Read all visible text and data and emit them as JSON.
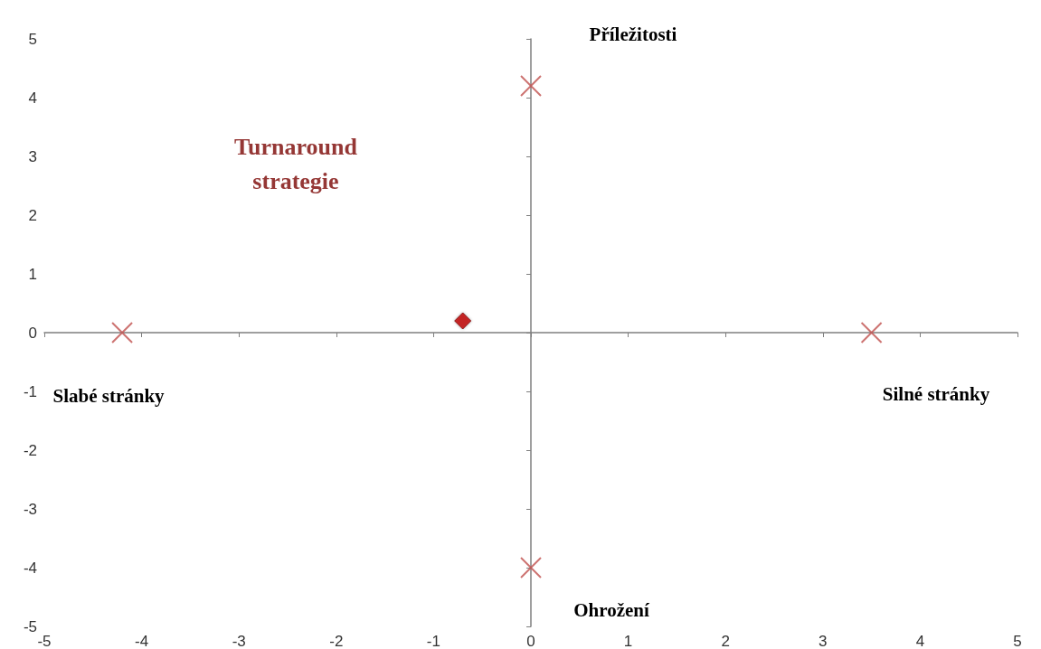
{
  "chart_data": {
    "type": "scatter",
    "title": "Turnaround\nstrategie",
    "series": [
      {
        "color": "#c0504d",
        "marker": "cross",
        "x": [
          -4.2,
          3.5,
          0,
          0
        ],
        "values": [
          0,
          0,
          4.2,
          -4
        ]
      },
      {
        "color": "#c00000",
        "marker": "diamond",
        "x": [
          -0.7
        ],
        "values": [
          0.2
        ]
      }
    ],
    "xlim": [
      -5,
      5
    ],
    "xticks": [
      -5,
      -4,
      -3,
      -2,
      -1,
      0,
      1,
      2,
      3,
      4,
      5
    ],
    "ylim": [
      -5,
      5
    ],
    "yticks": [
      -5,
      -4,
      -3,
      -2,
      -1,
      0,
      1,
      2,
      3,
      4,
      5
    ],
    "annotations": [
      "Příležitosti",
      "Slabé stránky",
      "Silné stránky",
      "Ohrožení"
    ]
  }
}
